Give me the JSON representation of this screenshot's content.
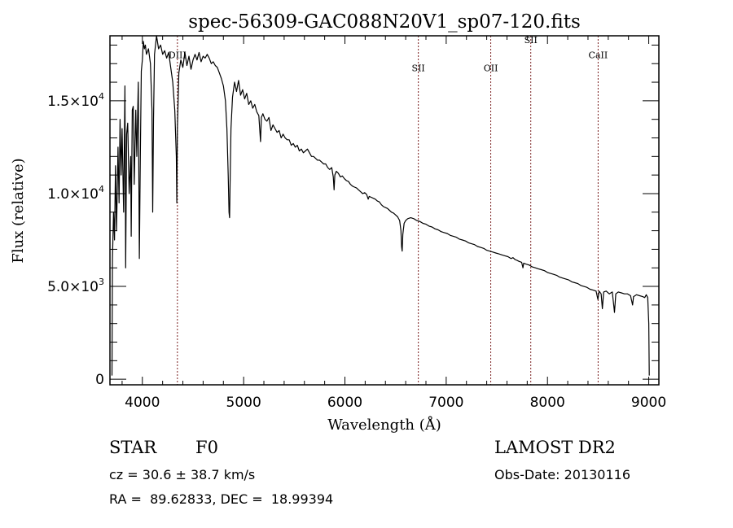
{
  "chart_data": {
    "type": "line",
    "title": "spec-56309-GAC088N20V1_sp07-120.fits",
    "xlabel": "Wavelength (Å)",
    "ylabel": "Flux (relative)",
    "xlim": [
      3680,
      9100
    ],
    "ylim": [
      -300,
      18500
    ],
    "grid": false,
    "x_ticks": [
      4000,
      5000,
      6000,
      7000,
      8000,
      9000
    ],
    "x_tick_labels": [
      "4000",
      "5000",
      "6000",
      "7000",
      "8000",
      "9000"
    ],
    "x_minor_step": 200,
    "y_ticks": [
      0,
      5000,
      10000,
      15000
    ],
    "y_tick_labels": [
      {
        "mantissa": "0",
        "exp": ""
      },
      {
        "mantissa": "5.0×10",
        "exp": "3"
      },
      {
        "mantissa": "1.0×10",
        "exp": "4"
      },
      {
        "mantissa": "1.5×10",
        "exp": "4"
      }
    ],
    "y_minor_step": 1000,
    "series": [
      {
        "name": "flux",
        "color": "#000000",
        "points": [
          [
            3700,
            200
          ],
          [
            3705,
            6500
          ],
          [
            3715,
            9000
          ],
          [
            3725,
            7500
          ],
          [
            3735,
            11500
          ],
          [
            3745,
            8000
          ],
          [
            3760,
            12500
          ],
          [
            3770,
            9500
          ],
          [
            3780,
            14000
          ],
          [
            3790,
            11000
          ],
          [
            3800,
            13500
          ],
          [
            3815,
            9000
          ],
          [
            3828,
            15800
          ],
          [
            3835,
            6000
          ],
          [
            3845,
            13200
          ],
          [
            3855,
            13800
          ],
          [
            3870,
            10000
          ],
          [
            3885,
            12000
          ],
          [
            3890,
            7700
          ],
          [
            3900,
            14500
          ],
          [
            3910,
            14700
          ],
          [
            3920,
            10500
          ],
          [
            3935,
            14500
          ],
          [
            3945,
            12000
          ],
          [
            3960,
            16000
          ],
          [
            3970,
            6500
          ],
          [
            3980,
            12000
          ],
          [
            3990,
            16600
          ],
          [
            4000,
            17200
          ],
          [
            4010,
            18200
          ],
          [
            4020,
            17800
          ],
          [
            4030,
            18000
          ],
          [
            4040,
            17500
          ],
          [
            4060,
            17800
          ],
          [
            4080,
            17000
          ],
          [
            4095,
            14500
          ],
          [
            4102,
            9000
          ],
          [
            4110,
            14000
          ],
          [
            4120,
            17500
          ],
          [
            4140,
            18600
          ],
          [
            4160,
            17800
          ],
          [
            4180,
            18000
          ],
          [
            4200,
            17500
          ],
          [
            4220,
            17700
          ],
          [
            4240,
            17300
          ],
          [
            4260,
            17600
          ],
          [
            4280,
            16800
          ],
          [
            4300,
            16000
          ],
          [
            4320,
            14500
          ],
          [
            4335,
            12000
          ],
          [
            4340,
            9500
          ],
          [
            4346,
            13500
          ],
          [
            4360,
            16500
          ],
          [
            4380,
            17200
          ],
          [
            4400,
            16800
          ],
          [
            4420,
            17600
          ],
          [
            4440,
            16900
          ],
          [
            4460,
            17400
          ],
          [
            4480,
            16700
          ],
          [
            4500,
            17200
          ],
          [
            4520,
            17500
          ],
          [
            4540,
            17200
          ],
          [
            4560,
            17600
          ],
          [
            4580,
            17100
          ],
          [
            4600,
            17400
          ],
          [
            4620,
            17300
          ],
          [
            4640,
            17500
          ],
          [
            4660,
            17300
          ],
          [
            4680,
            17000
          ],
          [
            4700,
            17100
          ],
          [
            4720,
            16900
          ],
          [
            4740,
            16800
          ],
          [
            4760,
            16500
          ],
          [
            4780,
            16200
          ],
          [
            4800,
            15800
          ],
          [
            4820,
            15000
          ],
          [
            4835,
            13500
          ],
          [
            4848,
            11000
          ],
          [
            4856,
            9000
          ],
          [
            4861,
            8700
          ],
          [
            4866,
            10500
          ],
          [
            4875,
            13500
          ],
          [
            4890,
            15200
          ],
          [
            4910,
            16000
          ],
          [
            4930,
            15500
          ],
          [
            4950,
            16100
          ],
          [
            4970,
            15300
          ],
          [
            4990,
            15600
          ],
          [
            5010,
            15100
          ],
          [
            5030,
            15400
          ],
          [
            5050,
            14800
          ],
          [
            5070,
            15000
          ],
          [
            5090,
            14600
          ],
          [
            5110,
            14800
          ],
          [
            5130,
            14400
          ],
          [
            5150,
            14200
          ],
          [
            5167,
            12800
          ],
          [
            5175,
            14100
          ],
          [
            5190,
            14300
          ],
          [
            5210,
            14000
          ],
          [
            5230,
            13900
          ],
          [
            5250,
            14100
          ],
          [
            5270,
            13400
          ],
          [
            5290,
            13700
          ],
          [
            5310,
            13500
          ],
          [
            5330,
            13300
          ],
          [
            5350,
            13400
          ],
          [
            5370,
            13000
          ],
          [
            5390,
            13200
          ],
          [
            5410,
            13000
          ],
          [
            5430,
            12900
          ],
          [
            5450,
            12900
          ],
          [
            5470,
            12600
          ],
          [
            5490,
            12700
          ],
          [
            5510,
            12500
          ],
          [
            5530,
            12600
          ],
          [
            5550,
            12300
          ],
          [
            5570,
            12400
          ],
          [
            5590,
            12200
          ],
          [
            5610,
            12300
          ],
          [
            5630,
            12400
          ],
          [
            5650,
            12200
          ],
          [
            5670,
            12000
          ],
          [
            5690,
            12000
          ],
          [
            5710,
            11900
          ],
          [
            5730,
            11800
          ],
          [
            5750,
            11800
          ],
          [
            5770,
            11700
          ],
          [
            5790,
            11600
          ],
          [
            5810,
            11600
          ],
          [
            5830,
            11400
          ],
          [
            5850,
            11300
          ],
          [
            5870,
            11400
          ],
          [
            5885,
            10900
          ],
          [
            5893,
            10200
          ],
          [
            5900,
            11000
          ],
          [
            5915,
            11200
          ],
          [
            5935,
            11100
          ],
          [
            5955,
            10900
          ],
          [
            5975,
            10950
          ],
          [
            5995,
            10800
          ],
          [
            6015,
            10700
          ],
          [
            6035,
            10650
          ],
          [
            6055,
            10500
          ],
          [
            6075,
            10400
          ],
          [
            6095,
            10350
          ],
          [
            6115,
            10300
          ],
          [
            6135,
            10200
          ],
          [
            6155,
            10100
          ],
          [
            6175,
            10000
          ],
          [
            6195,
            10050
          ],
          [
            6215,
            9950
          ],
          [
            6230,
            9700
          ],
          [
            6240,
            9850
          ],
          [
            6260,
            9800
          ],
          [
            6280,
            9750
          ],
          [
            6300,
            9700
          ],
          [
            6320,
            9600
          ],
          [
            6340,
            9550
          ],
          [
            6360,
            9400
          ],
          [
            6380,
            9300
          ],
          [
            6400,
            9250
          ],
          [
            6420,
            9200
          ],
          [
            6440,
            9100
          ],
          [
            6460,
            9000
          ],
          [
            6480,
            8950
          ],
          [
            6500,
            8850
          ],
          [
            6520,
            8750
          ],
          [
            6540,
            8550
          ],
          [
            6553,
            8000
          ],
          [
            6560,
            7150
          ],
          [
            6565,
            6900
          ],
          [
            6572,
            7800
          ],
          [
            6585,
            8400
          ],
          [
            6600,
            8550
          ],
          [
            6620,
            8650
          ],
          [
            6650,
            8700
          ],
          [
            6680,
            8650
          ],
          [
            6710,
            8550
          ],
          [
            6740,
            8500
          ],
          [
            6770,
            8400
          ],
          [
            6800,
            8350
          ],
          [
            6830,
            8250
          ],
          [
            6860,
            8200
          ],
          [
            6890,
            8100
          ],
          [
            6920,
            8050
          ],
          [
            6950,
            7950
          ],
          [
            6980,
            7900
          ],
          [
            7010,
            7850
          ],
          [
            7040,
            7750
          ],
          [
            7070,
            7700
          ],
          [
            7100,
            7650
          ],
          [
            7130,
            7550
          ],
          [
            7160,
            7500
          ],
          [
            7190,
            7450
          ],
          [
            7220,
            7350
          ],
          [
            7250,
            7300
          ],
          [
            7280,
            7250
          ],
          [
            7310,
            7150
          ],
          [
            7340,
            7100
          ],
          [
            7370,
            7050
          ],
          [
            7400,
            6950
          ],
          [
            7430,
            6900
          ],
          [
            7460,
            6850
          ],
          [
            7490,
            6800
          ],
          [
            7520,
            6750
          ],
          [
            7550,
            6700
          ],
          [
            7580,
            6650
          ],
          [
            7610,
            6600
          ],
          [
            7640,
            6500
          ],
          [
            7660,
            6550
          ],
          [
            7680,
            6450
          ],
          [
            7700,
            6400
          ],
          [
            7720,
            6350
          ],
          [
            7745,
            6300
          ],
          [
            7758,
            6000
          ],
          [
            7765,
            6250
          ],
          [
            7790,
            6200
          ],
          [
            7820,
            6150
          ],
          [
            7850,
            6050
          ],
          [
            7880,
            6000
          ],
          [
            7910,
            5950
          ],
          [
            7940,
            5900
          ],
          [
            7970,
            5850
          ],
          [
            8000,
            5750
          ],
          [
            8030,
            5700
          ],
          [
            8060,
            5650
          ],
          [
            8090,
            5600
          ],
          [
            8120,
            5500
          ],
          [
            8150,
            5450
          ],
          [
            8180,
            5400
          ],
          [
            8210,
            5350
          ],
          [
            8240,
            5250
          ],
          [
            8270,
            5200
          ],
          [
            8300,
            5150
          ],
          [
            8330,
            5050
          ],
          [
            8360,
            5000
          ],
          [
            8390,
            4950
          ],
          [
            8420,
            4850
          ],
          [
            8450,
            4800
          ],
          [
            8480,
            4750
          ],
          [
            8498,
            4300
          ],
          [
            8510,
            4750
          ],
          [
            8530,
            4600
          ],
          [
            8542,
            3800
          ],
          [
            8555,
            4700
          ],
          [
            8580,
            4750
          ],
          [
            8610,
            4600
          ],
          [
            8640,
            4700
          ],
          [
            8662,
            3600
          ],
          [
            8675,
            4600
          ],
          [
            8700,
            4700
          ],
          [
            8730,
            4650
          ],
          [
            8760,
            4600
          ],
          [
            8790,
            4600
          ],
          [
            8820,
            4500
          ],
          [
            8840,
            4000
          ],
          [
            8850,
            4450
          ],
          [
            8880,
            4550
          ],
          [
            8910,
            4500
          ],
          [
            8940,
            4450
          ],
          [
            8960,
            4400
          ],
          [
            8975,
            4550
          ],
          [
            8990,
            4400
          ],
          [
            9000,
            3000
          ],
          [
            9005,
            200
          ]
        ]
      }
    ],
    "annotations": [
      {
        "label": "DIII",
        "wavelength": 4346,
        "label_flux": 17300
      },
      {
        "label": "SII",
        "wavelength": 6725,
        "label_flux": 16600
      },
      {
        "label": "OII",
        "wavelength": 7440,
        "label_flux": 16600
      },
      {
        "label": "SII",
        "wavelength": 7835,
        "label_flux": 18100
      },
      {
        "label": "CaII",
        "wavelength": 8500,
        "label_flux": 17300
      }
    ],
    "annotation_color": "#7a1f1f"
  },
  "info": {
    "object_class": "STAR",
    "subclass": "F0",
    "redshift_line": "cz = 30.6 ± 38.7 km/s",
    "coords_line": "RA =  89.62833, DEC =  18.99394",
    "survey": "LAMOST DR2",
    "obs_date_line": "Obs-Date: 20130116"
  }
}
